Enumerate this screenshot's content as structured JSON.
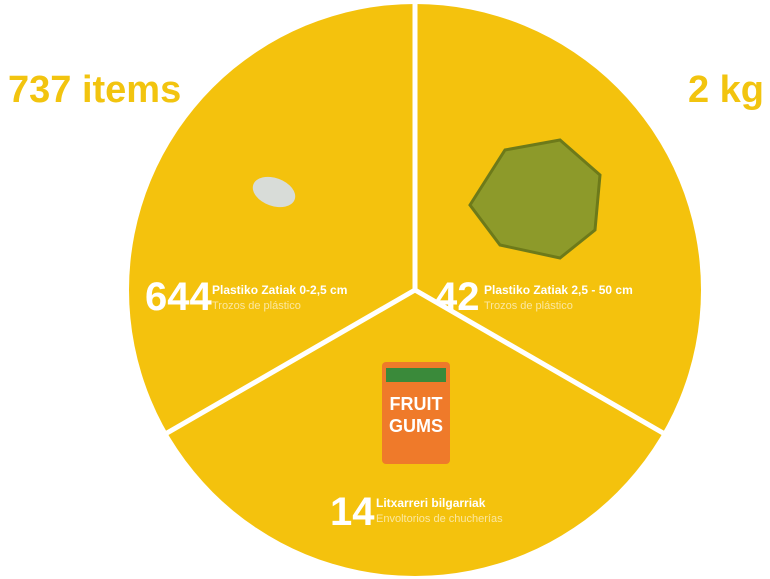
{
  "header": {
    "left": "737 items",
    "right": "2 kg"
  },
  "segments": [
    {
      "number": "644",
      "label": "Plastiko Zatiak 0-2,5 cm",
      "sublabel": "Trozos de plástico"
    },
    {
      "number": "42",
      "label": "Plastiko Zatiak 2,5 - 50 cm",
      "sublabel": "Trozos de plástico"
    },
    {
      "number": "14",
      "label": "Litxarreri bilgarriak",
      "sublabel": "Envoltorios de chucherías"
    }
  ]
}
